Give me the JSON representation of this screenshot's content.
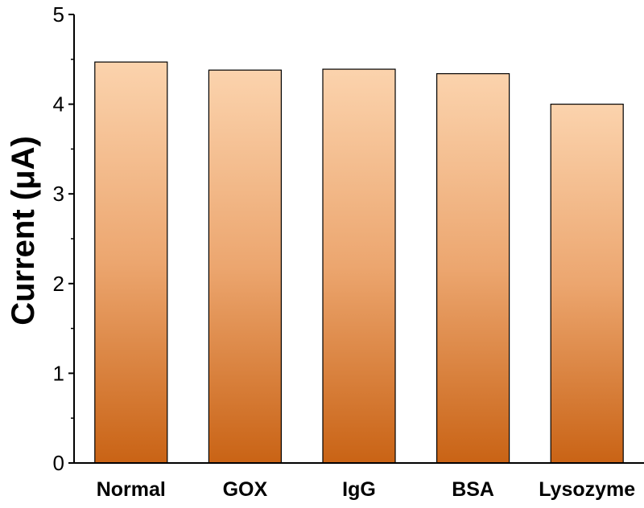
{
  "chart_data": {
    "type": "bar",
    "categories": [
      "Normal",
      "GOX",
      "IgG",
      "BSA",
      "Lysozyme"
    ],
    "values": [
      4.47,
      4.38,
      4.39,
      4.34,
      4.0
    ],
    "title": "",
    "xlabel": "",
    "ylabel": "Current (μA)",
    "ylim": [
      0,
      5
    ],
    "yticks": [
      "0",
      "1",
      "2",
      "3",
      "4",
      "5"
    ],
    "grid": false,
    "legend": "none",
    "colors": {
      "bar_top": "#fbd3ad",
      "bar_mid": "#eca66f",
      "bar_bottom": "#c96315",
      "bar_edge": "#000000",
      "axis": "#000000"
    }
  }
}
